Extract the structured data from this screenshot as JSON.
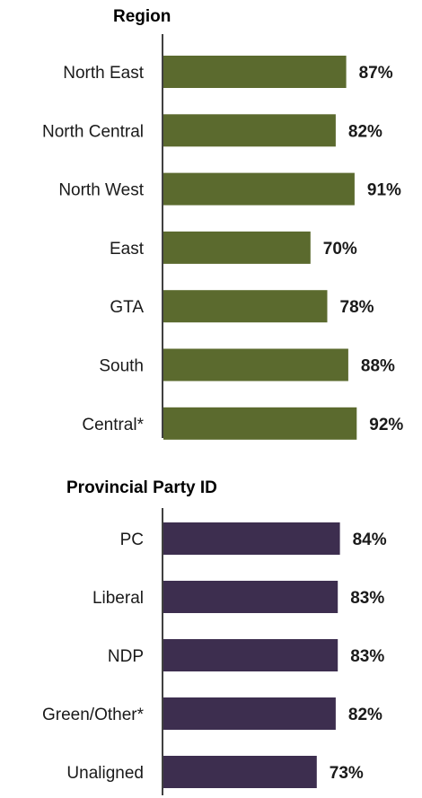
{
  "chart_data": [
    {
      "type": "bar",
      "orientation": "horizontal",
      "title": "Region",
      "categories": [
        "North East",
        "North Central",
        "North West",
        "East",
        "GTA",
        "South",
        "Central*"
      ],
      "values": [
        87,
        82,
        91,
        70,
        78,
        88,
        92
      ],
      "value_labels": [
        "87%",
        "82%",
        "91%",
        "70%",
        "78%",
        "88%",
        "92%"
      ],
      "unit": "%",
      "xlim": [
        0,
        100
      ],
      "grid": false,
      "legend": "none",
      "color": "#5b6a2e"
    },
    {
      "type": "bar",
      "orientation": "horizontal",
      "title": "Provincial Party ID",
      "categories": [
        "PC",
        "Liberal",
        "NDP",
        "Green/Other*",
        "Unaligned"
      ],
      "values": [
        84,
        83,
        83,
        82,
        73
      ],
      "value_labels": [
        "84%",
        "83%",
        "83%",
        "82%",
        "73%"
      ],
      "unit": "%",
      "xlim": [
        0,
        100
      ],
      "grid": false,
      "legend": "none",
      "color": "#3d2e4f"
    }
  ]
}
